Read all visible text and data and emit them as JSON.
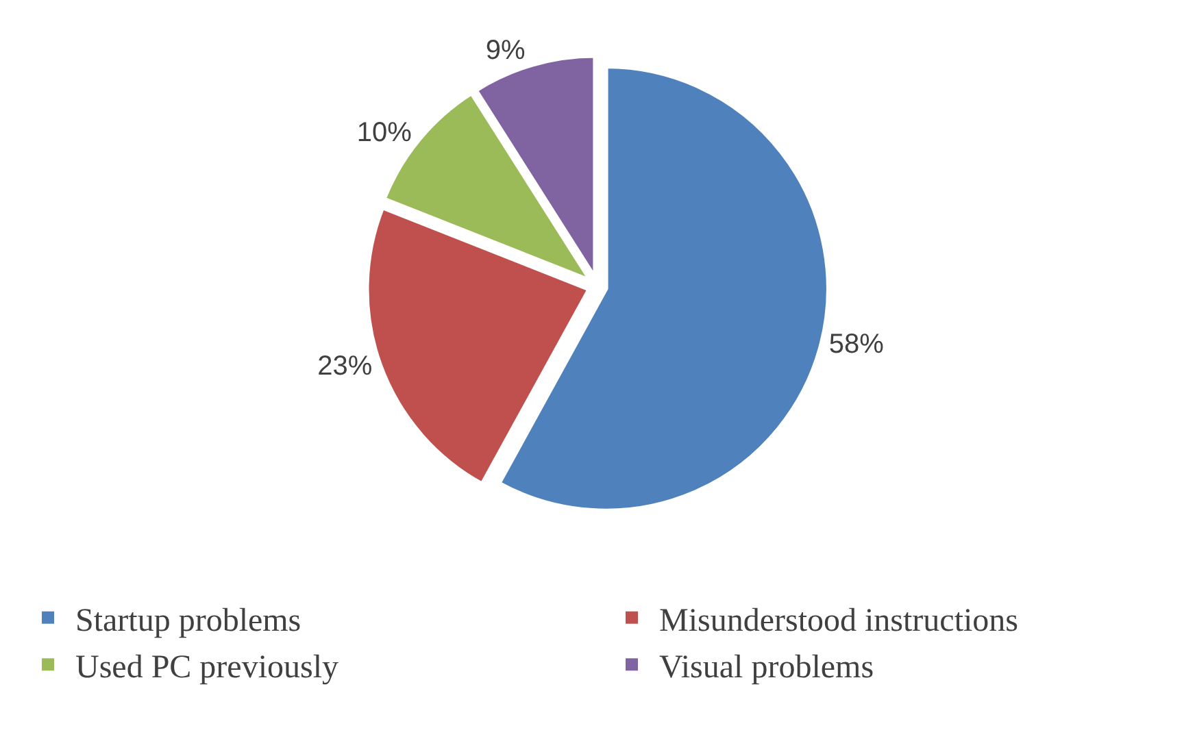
{
  "chart_data": {
    "type": "pie",
    "categories": [
      "Startup problems",
      "Misunderstood instructions",
      "Used PC previously",
      "Visual problems"
    ],
    "values": [
      58,
      23,
      10,
      9
    ],
    "colors": [
      "#4f81bd",
      "#c0504d",
      "#9bbb59",
      "#8064a2"
    ],
    "value_labels": [
      "58%",
      "23%",
      "10%",
      "9%"
    ],
    "legend": "bottom"
  }
}
